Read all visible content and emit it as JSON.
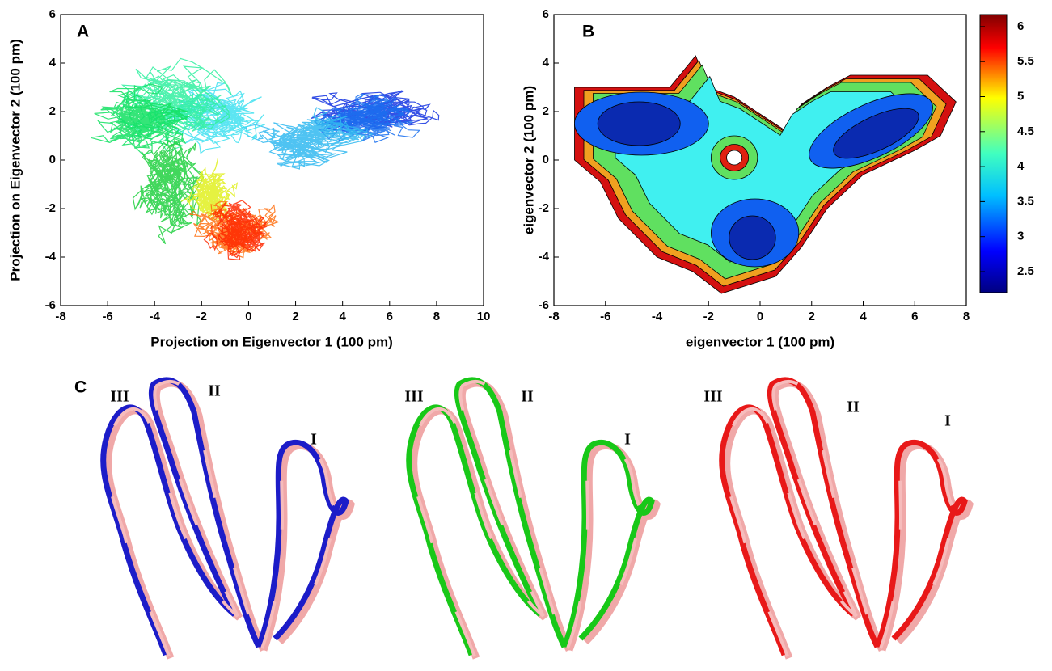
{
  "panel_a": {
    "label": "A",
    "xlabel": "Projection on Eigenvector 1 (100 pm)",
    "ylabel": "Projection on Eigenvector 2 (100 pm)",
    "xticks": [
      -8,
      -6,
      -4,
      -2,
      0,
      2,
      4,
      6,
      8,
      10
    ],
    "yticks": [
      -6,
      -4,
      -2,
      0,
      2,
      4,
      6
    ]
  },
  "panel_b": {
    "label": "B",
    "xlabel": "eigenvector  1 (100 pm)",
    "ylabel": "eigenvector 2 (100 pm)",
    "xticks": [
      -8,
      -6,
      -4,
      -2,
      0,
      2,
      4,
      6,
      8
    ],
    "yticks": [
      -6,
      -4,
      -2,
      0,
      2,
      4,
      6
    ],
    "colorbar_ticks": [
      2.5,
      3,
      3.5,
      4,
      4.5,
      5,
      5.5,
      6
    ]
  },
  "panel_c": {
    "label": "C",
    "structures": [
      {
        "labels": [
          "III",
          "II",
          "I"
        ]
      },
      {
        "labels": [
          "III",
          "II",
          "I"
        ]
      },
      {
        "labels": [
          "III",
          "II",
          "I"
        ]
      }
    ]
  }
}
